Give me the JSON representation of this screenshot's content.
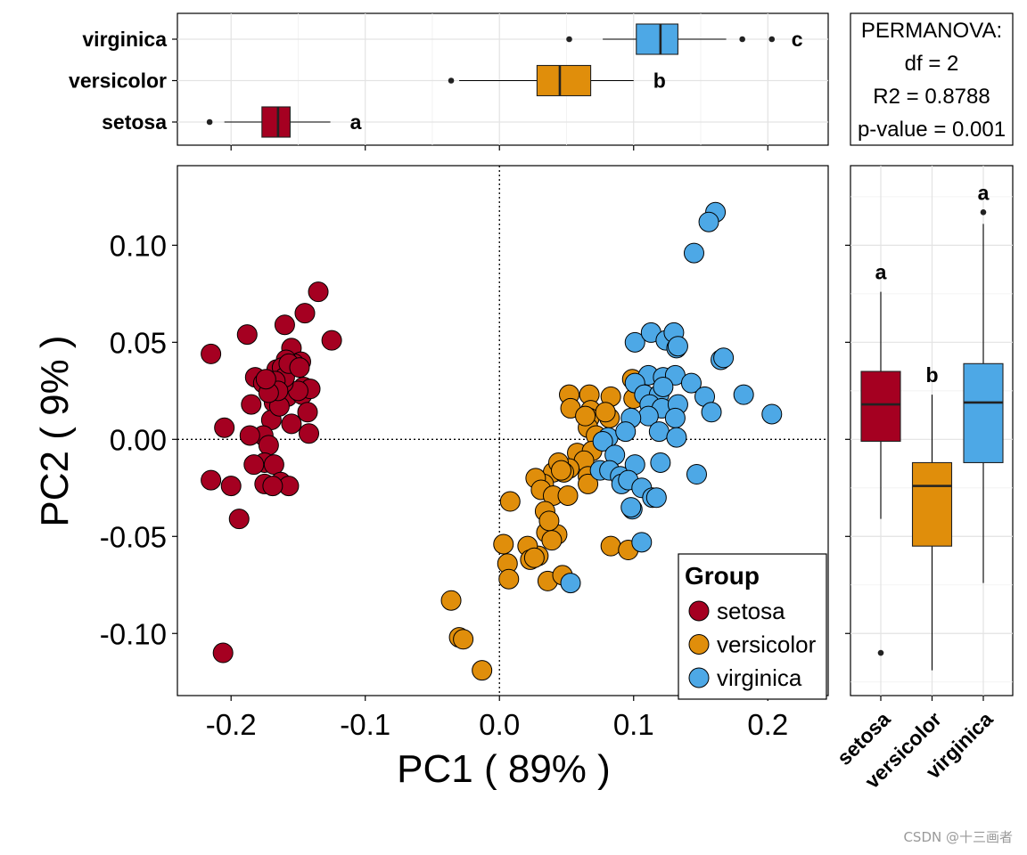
{
  "chart_data": [
    {
      "id": "scatter",
      "type": "scatter",
      "xlabel": "PC1 ( 89% )",
      "ylabel": "PC2 ( 9% )",
      "xlim": [
        -0.24,
        0.245
      ],
      "ylim": [
        -0.132,
        0.141
      ],
      "xticks": [
        -0.2,
        -0.1,
        0.0,
        0.1,
        0.2
      ],
      "xtick_labels": [
        "-0.2",
        "-0.1",
        "0.0",
        "0.1",
        "0.2"
      ],
      "yticks": [
        -0.1,
        -0.05,
        0.0,
        0.05,
        0.1
      ],
      "ytick_labels": [
        "-0.10",
        "-0.05",
        "0.00",
        "0.05",
        "0.10"
      ],
      "reference_lines": {
        "x": 0,
        "y": 0,
        "style": "dotted"
      },
      "legend": {
        "title": "Group",
        "position": "bottom-right",
        "entries": [
          "setosa",
          "versicolor",
          "virginica"
        ]
      },
      "series": [
        {
          "name": "setosa",
          "color": "#A50021",
          "points": [
            [
              -0.215,
              0.044
            ],
            [
              -0.145,
              0.065
            ],
            [
              -0.155,
              0.047
            ],
            [
              -0.125,
              0.051
            ],
            [
              -0.148,
              0.04
            ],
            [
              -0.16,
              0.059
            ],
            [
              -0.188,
              0.054
            ],
            [
              -0.205,
              0.006
            ],
            [
              -0.182,
              0.032
            ],
            [
              -0.176,
              0.029
            ],
            [
              -0.166,
              0.036
            ],
            [
              -0.153,
              0.039
            ],
            [
              -0.159,
              0.041
            ],
            [
              -0.146,
              0.027
            ],
            [
              -0.168,
              0.019
            ],
            [
              -0.158,
              0.022
            ],
            [
              -0.147,
              0.023
            ],
            [
              -0.17,
              0.01
            ],
            [
              -0.143,
              0.014
            ],
            [
              -0.185,
              0.018
            ],
            [
              -0.176,
              0.002
            ],
            [
              -0.164,
              0.017
            ],
            [
              -0.171,
              0.026
            ],
            [
              -0.155,
              0.008
            ],
            [
              -0.142,
              0.003
            ],
            [
              -0.172,
              -0.003
            ],
            [
              -0.175,
              -0.012
            ],
            [
              -0.183,
              -0.013
            ],
            [
              -0.186,
              0.002
            ],
            [
              -0.168,
              -0.013
            ],
            [
              -0.163,
              -0.022
            ],
            [
              -0.175,
              -0.023
            ],
            [
              -0.157,
              -0.024
            ],
            [
              -0.169,
              -0.024
            ],
            [
              -0.2,
              -0.024
            ],
            [
              -0.215,
              -0.021
            ],
            [
              -0.194,
              -0.041
            ],
            [
              -0.206,
              -0.11
            ],
            [
              -0.141,
              0.026
            ],
            [
              -0.15,
              0.025
            ],
            [
              -0.161,
              0.029
            ],
            [
              -0.162,
              0.037
            ],
            [
              -0.16,
              0.032
            ],
            [
              -0.167,
              0.03
            ],
            [
              -0.157,
              0.039
            ],
            [
              -0.149,
              0.037
            ],
            [
              -0.165,
              0.025
            ],
            [
              -0.135,
              0.076
            ],
            [
              -0.172,
              0.024
            ],
            [
              -0.174,
              0.031
            ]
          ]
        },
        {
          "name": "versicolor",
          "color": "#E08E0B",
          "points": [
            [
              0.052,
              0.023
            ],
            [
              0.067,
              0.023
            ],
            [
              0.083,
              0.022
            ],
            [
              0.1,
              0.021
            ],
            [
              0.068,
              0.015
            ],
            [
              0.067,
              0.011
            ],
            [
              0.082,
              0.011
            ],
            [
              0.066,
              0.006
            ],
            [
              0.053,
              0.016
            ],
            [
              0.064,
              0.012
            ],
            [
              0.058,
              -0.007
            ],
            [
              0.072,
              0.002
            ],
            [
              0.069,
              -0.006
            ],
            [
              0.063,
              -0.011
            ],
            [
              0.052,
              -0.015
            ],
            [
              0.066,
              -0.019
            ],
            [
              0.044,
              -0.014
            ],
            [
              0.04,
              -0.017
            ],
            [
              0.048,
              -0.017
            ],
            [
              0.033,
              -0.023
            ],
            [
              0.027,
              -0.02
            ],
            [
              0.031,
              -0.026
            ],
            [
              0.04,
              -0.029
            ],
            [
              0.034,
              -0.037
            ],
            [
              0.051,
              -0.029
            ],
            [
              0.066,
              -0.023
            ],
            [
              0.008,
              -0.032
            ],
            [
              0.035,
              -0.048
            ],
            [
              0.043,
              -0.049
            ],
            [
              0.037,
              -0.042
            ],
            [
              0.039,
              -0.052
            ],
            [
              0.029,
              -0.06
            ],
            [
              0.021,
              -0.055
            ],
            [
              0.003,
              -0.054
            ],
            [
              0.023,
              -0.062
            ],
            [
              0.006,
              -0.064
            ],
            [
              0.026,
              -0.061
            ],
            [
              0.007,
              -0.072
            ],
            [
              0.036,
              -0.073
            ],
            [
              0.047,
              -0.07
            ],
            [
              0.083,
              -0.055
            ],
            [
              0.096,
              -0.057
            ],
            [
              -0.036,
              -0.083
            ],
            [
              -0.03,
              -0.102
            ],
            [
              -0.027,
              -0.103
            ],
            [
              -0.013,
              -0.119
            ],
            [
              0.044,
              -0.012
            ],
            [
              0.046,
              -0.016
            ],
            [
              0.099,
              0.031
            ],
            [
              0.079,
              0.014
            ]
          ]
        },
        {
          "name": "virginica",
          "color": "#4DA8E6",
          "points": [
            [
              0.161,
              0.117
            ],
            [
              0.156,
              0.112
            ],
            [
              0.145,
              0.096
            ],
            [
              0.101,
              0.05
            ],
            [
              0.113,
              0.055
            ],
            [
              0.124,
              0.051
            ],
            [
              0.13,
              0.055
            ],
            [
              0.132,
              0.047
            ],
            [
              0.133,
              0.048
            ],
            [
              0.165,
              0.041
            ],
            [
              0.167,
              0.042
            ],
            [
              0.111,
              0.033
            ],
            [
              0.122,
              0.032
            ],
            [
              0.131,
              0.033
            ],
            [
              0.143,
              0.029
            ],
            [
              0.101,
              0.029
            ],
            [
              0.108,
              0.023
            ],
            [
              0.119,
              0.023
            ],
            [
              0.122,
              0.027
            ],
            [
              0.153,
              0.022
            ],
            [
              0.182,
              0.023
            ],
            [
              0.203,
              0.013
            ],
            [
              0.158,
              0.014
            ],
            [
              0.112,
              0.018
            ],
            [
              0.121,
              0.016
            ],
            [
              0.133,
              0.018
            ],
            [
              0.111,
              0.012
            ],
            [
              0.131,
              0.011
            ],
            [
              0.119,
              0.004
            ],
            [
              0.132,
              0.001
            ],
            [
              0.098,
              0.011
            ],
            [
              0.081,
              0.001
            ],
            [
              0.077,
              -0.001
            ],
            [
              0.094,
              0.004
            ],
            [
              0.086,
              -0.008
            ],
            [
              0.075,
              -0.016
            ],
            [
              0.082,
              -0.016
            ],
            [
              0.09,
              -0.019
            ],
            [
              0.101,
              -0.013
            ],
            [
              0.12,
              -0.012
            ],
            [
              0.147,
              -0.018
            ],
            [
              0.091,
              -0.023
            ],
            [
              0.096,
              -0.021
            ],
            [
              0.106,
              -0.025
            ],
            [
              0.114,
              -0.03
            ],
            [
              0.117,
              -0.03
            ],
            [
              0.099,
              -0.036
            ],
            [
              0.106,
              -0.053
            ],
            [
              0.053,
              -0.074
            ],
            [
              0.098,
              -0.035
            ]
          ]
        }
      ]
    },
    {
      "id": "top_boxplot",
      "type": "boxplot",
      "orientation": "horizontal",
      "axis": "PC1",
      "categories": [
        "virginica",
        "versicolor",
        "setosa"
      ],
      "groups": [
        {
          "name": "setosa",
          "color": "#A50021",
          "letter": "a",
          "whisker_low": -0.205,
          "q1": -0.177,
          "median": -0.165,
          "q3": -0.156,
          "whisker_high": -0.126,
          "outliers": [
            -0.216
          ]
        },
        {
          "name": "versicolor",
          "color": "#E08E0B",
          "letter": "b",
          "whisker_low": -0.03,
          "q1": 0.028,
          "median": 0.045,
          "q3": 0.068,
          "whisker_high": 0.1,
          "outliers": [
            -0.036
          ]
        },
        {
          "name": "virginica",
          "color": "#4DA8E6",
          "letter": "c",
          "whisker_low": 0.077,
          "q1": 0.102,
          "median": 0.12,
          "q3": 0.133,
          "whisker_high": 0.169,
          "outliers": [
            0.052,
            0.181,
            0.203
          ]
        }
      ]
    },
    {
      "id": "right_boxplot",
      "type": "boxplot",
      "orientation": "vertical",
      "axis": "PC2",
      "categories": [
        "setosa",
        "versicolor",
        "virginica"
      ],
      "groups": [
        {
          "name": "setosa",
          "color": "#A50021",
          "letter": "a",
          "whisker_low": -0.041,
          "q1": -0.001,
          "median": 0.018,
          "q3": 0.035,
          "whisker_high": 0.076,
          "outliers": [
            -0.11
          ]
        },
        {
          "name": "versicolor",
          "color": "#E08E0B",
          "letter": "b",
          "whisker_low": -0.119,
          "q1": -0.055,
          "median": -0.024,
          "q3": -0.012,
          "whisker_high": 0.023,
          "outliers": []
        },
        {
          "name": "virginica",
          "color": "#4DA8E6",
          "letter": "a",
          "whisker_low": -0.074,
          "q1": -0.012,
          "median": 0.019,
          "q3": 0.039,
          "whisker_high": 0.111,
          "outliers": [
            0.117
          ]
        }
      ]
    }
  ],
  "permanova": {
    "title": "PERMANOVA:",
    "df": "df = 2",
    "r2": "R2 = 0.8788",
    "pvalue": "p-value = 0.001"
  },
  "watermark": "CSDN @十三画者"
}
